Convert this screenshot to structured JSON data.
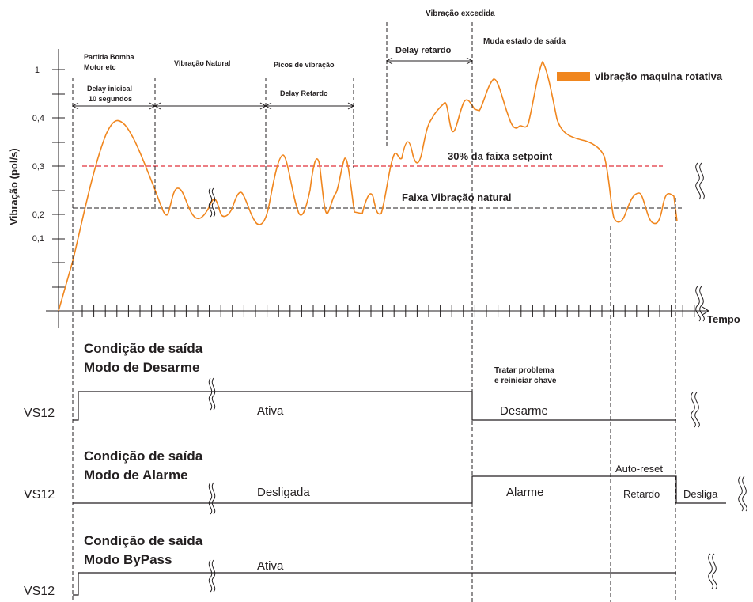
{
  "annotations": {
    "vibracao_excedida": "Vibração excedida",
    "muda_estado": "Muda estado de saída",
    "partida_bomba_1": "Partida Bomba",
    "partida_bomba_2": "Motor etc",
    "vibracao_natural": "Vibração Natural",
    "picos_vibracao": "Picos de vibração",
    "delay_retardo_top": "Delay retardo",
    "delay_inicial_1": "Delay inicical",
    "delay_inicial_2": "10 segundos",
    "delay_retardo_mid": "Delay Retardo",
    "setpoint_30": "30% da faixa setpoint",
    "faixa_natural": "Faixa Vibração natural",
    "tratar_1": "Tratar problema",
    "tratar_2": "e reiniciar chave",
    "auto_reset": "Auto-reset"
  },
  "legend": {
    "label": "vibração maquina rotativa",
    "color": "#f0861e"
  },
  "axes": {
    "ylabel": "Vibração (pol/s)",
    "xlabel": "Tempo",
    "yticks": [
      "1",
      "0,4",
      "0,3",
      "0,2",
      "0,1"
    ]
  },
  "colors": {
    "curve": "#f0861e",
    "setpoint_line": "#e0303a",
    "natural_line": "#231f20",
    "ink": "#231f20"
  },
  "panels": {
    "desarme": {
      "title_1": "Condição de saída",
      "title_2": "Modo de Desarme",
      "signal": "VS12",
      "state_on": "Ativa",
      "state_off": "Desarme"
    },
    "alarme": {
      "title_1": "Condição de saída",
      "title_2": "Modo de Alarme",
      "signal": "VS12",
      "state_off": "Desligada",
      "state_on": "Alarme",
      "state_delay": "Retardo",
      "state_end": "Desliga"
    },
    "bypass": {
      "title_1": "Condição de saída",
      "title_2": "Modo ByPass",
      "signal": "VS12",
      "state_on": "Ativa"
    }
  }
}
